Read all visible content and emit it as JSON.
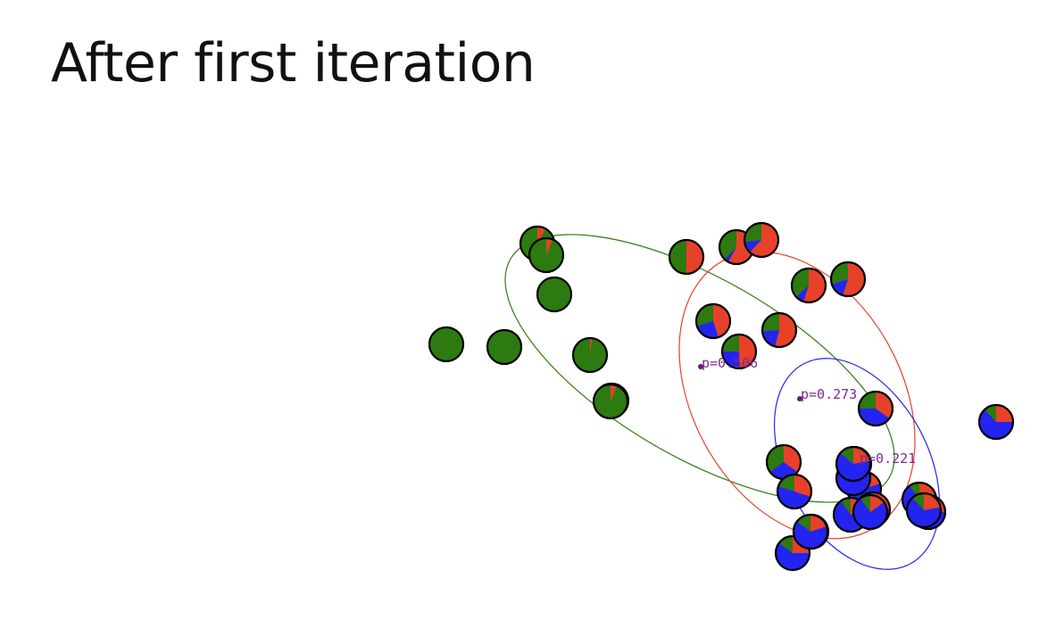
{
  "slide": {
    "title": "After first iteration"
  },
  "clusters": [
    {
      "name": "red",
      "color": "#e8412a",
      "label": "p=0.506",
      "label_shown": "p=0.506"
    },
    {
      "name": "blue",
      "color": "#2424f0",
      "label": "p=0.273"
    },
    {
      "name": "green",
      "color": "#2d7a10",
      "label": "p=0.221"
    }
  ],
  "colors": {
    "red": "#e8412a",
    "green": "#2d7a10",
    "blue": "#2424f0",
    "ellipse_red": "#e8412a",
    "ellipse_green": "#2d7a10",
    "ellipse_blue": "#2424f0",
    "label": "#7b2a8c",
    "center": "#6a1a78",
    "outline": "#000000"
  },
  "data_points_soft_assignments": [
    {
      "r": 0.0,
      "g": 1.0,
      "b": 0.0
    },
    {
      "r": 0.0,
      "g": 1.0,
      "b": 0.0
    },
    {
      "r": 0.08,
      "g": 0.92,
      "b": 0.0
    },
    {
      "r": 0.06,
      "g": 0.94,
      "b": 0.0
    },
    {
      "r": 0.0,
      "g": 1.0,
      "b": 0.0
    },
    {
      "r": 0.02,
      "g": 0.98,
      "b": 0.0
    },
    {
      "r": 0.12,
      "g": 0.88,
      "b": 0.0
    },
    {
      "r": 0.06,
      "g": 0.94,
      "b": 0.0
    },
    {
      "r": 0.5,
      "g": 0.5,
      "b": 0.0
    },
    {
      "r": 0.58,
      "g": 0.38,
      "b": 0.04
    },
    {
      "r": 0.62,
      "g": 0.27,
      "b": 0.11
    },
    {
      "r": 0.55,
      "g": 0.37,
      "b": 0.08
    },
    {
      "r": 0.55,
      "g": 0.3,
      "b": 0.15
    },
    {
      "r": 0.45,
      "g": 0.3,
      "b": 0.25
    },
    {
      "r": 0.54,
      "g": 0.26,
      "b": 0.2
    },
    {
      "r": 0.5,
      "g": 0.25,
      "b": 0.25
    },
    {
      "r": 0.35,
      "g": 0.25,
      "b": 0.4
    },
    {
      "r": 0.35,
      "g": 0.35,
      "b": 0.3
    },
    {
      "r": 0.3,
      "g": 0.2,
      "b": 0.5
    },
    {
      "r": 0.2,
      "g": 0.3,
      "b": 0.5
    },
    {
      "r": 0.25,
      "g": 0.15,
      "b": 0.6
    },
    {
      "r": 0.25,
      "g": 0.12,
      "b": 0.63
    },
    {
      "r": 0.2,
      "g": 0.15,
      "b": 0.65
    },
    {
      "r": 0.18,
      "g": 0.12,
      "b": 0.7
    },
    {
      "r": 0.2,
      "g": 0.1,
      "b": 0.7
    },
    {
      "r": 0.25,
      "g": 0.1,
      "b": 0.65
    },
    {
      "r": 0.15,
      "g": 0.1,
      "b": 0.75
    },
    {
      "r": 0.2,
      "g": 0.1,
      "b": 0.7
    },
    {
      "r": 0.25,
      "g": 0.1,
      "b": 0.65
    },
    {
      "r": 0.22,
      "g": 0.12,
      "b": 0.66
    },
    {
      "r": 0.25,
      "g": 0.12,
      "b": 0.63
    },
    {
      "r": 0.2,
      "g": 0.15,
      "b": 0.65
    },
    {
      "r": 0.22,
      "g": 0.14,
      "b": 0.64
    }
  ]
}
